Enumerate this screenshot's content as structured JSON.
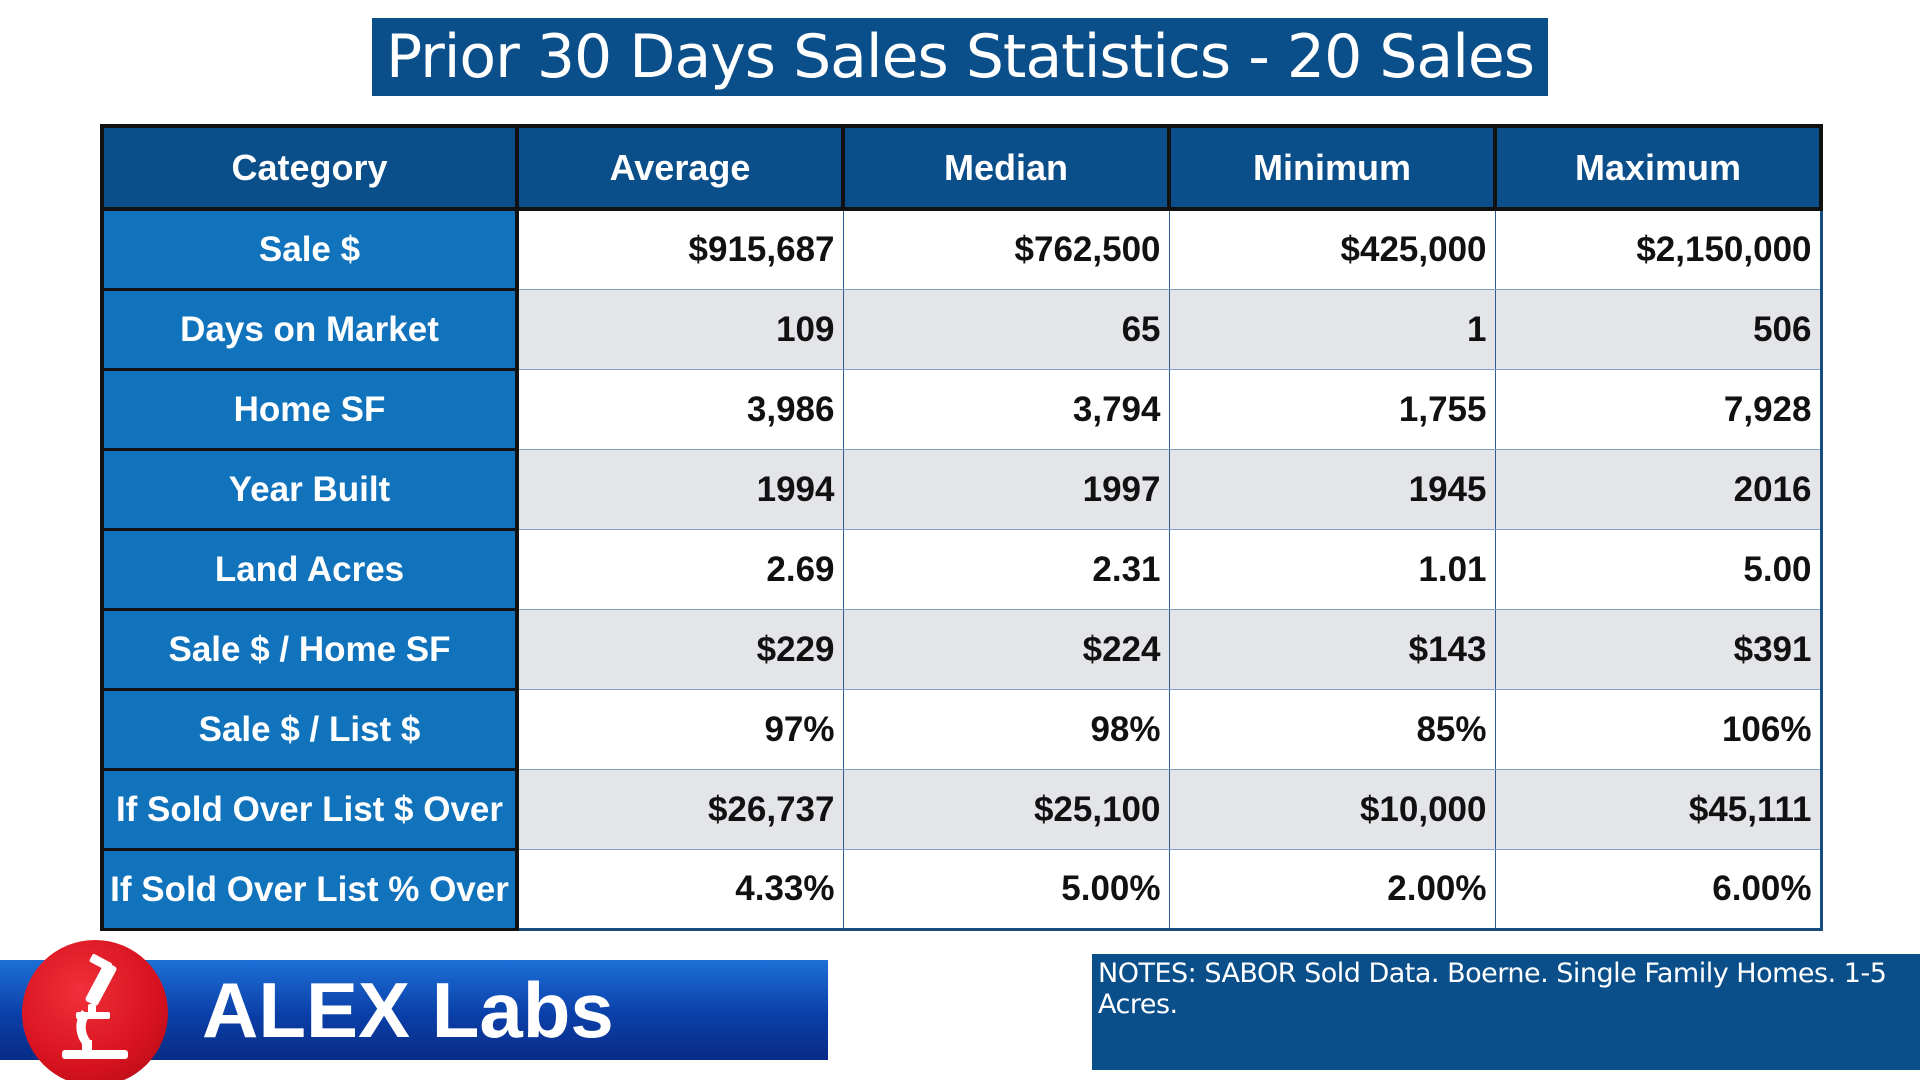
{
  "title": "Prior 30 Days Sales Statistics - 20 Sales",
  "table": {
    "headers": [
      "Category",
      "Average",
      "Median",
      "Minimum",
      "Maximum"
    ],
    "rows": [
      {
        "category": "Sale $",
        "values": [
          "$915,687",
          "$762,500",
          "$425,000",
          "$2,150,000"
        ]
      },
      {
        "category": "Days on Market",
        "values": [
          "109",
          "65",
          "1",
          "506"
        ]
      },
      {
        "category": "Home SF",
        "values": [
          "3,986",
          "3,794",
          "1,755",
          "7,928"
        ]
      },
      {
        "category": "Year Built",
        "values": [
          "1994",
          "1997",
          "1945",
          "2016"
        ]
      },
      {
        "category": "Land Acres",
        "values": [
          "2.69",
          "2.31",
          "1.01",
          "5.00"
        ]
      },
      {
        "category": "Sale $ / Home SF",
        "values": [
          "$229",
          "$224",
          "$143",
          "$391"
        ]
      },
      {
        "category": "Sale $ / List $",
        "values": [
          "97%",
          "98%",
          "85%",
          "106%"
        ]
      },
      {
        "category": "If Sold Over List $ Over",
        "values": [
          "$26,737",
          "$25,100",
          "$10,000",
          "$45,111"
        ]
      },
      {
        "category": "If Sold Over List % Over",
        "values": [
          "4.33%",
          "5.00%",
          "2.00%",
          "6.00%"
        ]
      }
    ]
  },
  "logo": {
    "text": "ALEX Labs",
    "icon": "microscope-icon"
  },
  "notes": "NOTES: SABOR Sold Data. Boerne. Single Family Homes. 1-5 Acres.",
  "colors": {
    "header_bg": "#0b4f8a",
    "category_bg": "#1273bd",
    "row_alt_bg": "#e4e5e8",
    "logo_red": "#d6121e",
    "logo_blue": "#0a3fa8"
  }
}
